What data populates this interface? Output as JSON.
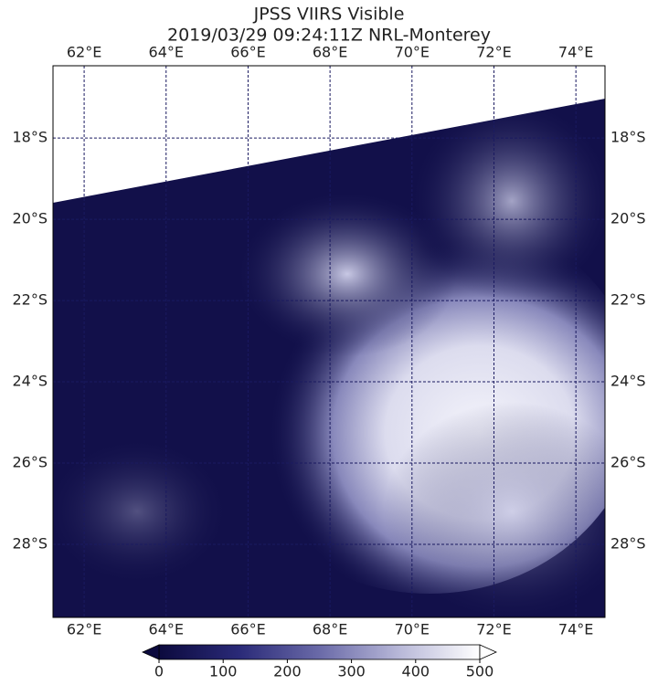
{
  "title": "JPSS VIIRS Visible",
  "subtitle": "2019/03/29 09:24:11Z NRL-Monterey",
  "map": {
    "lon_lim": [
      61.24,
      74.71
    ],
    "lat_lim": [
      -16.22,
      -29.8
    ],
    "lon_ticks": [
      {
        "value": 62,
        "label": "62°E"
      },
      {
        "value": 64,
        "label": "64°E"
      },
      {
        "value": 66,
        "label": "66°E"
      },
      {
        "value": 68,
        "label": "68°E"
      },
      {
        "value": 70,
        "label": "70°E"
      },
      {
        "value": 72,
        "label": "72°E"
      },
      {
        "value": 74,
        "label": "74°E"
      }
    ],
    "lat_ticks": [
      {
        "value": -18,
        "label": "18°S"
      },
      {
        "value": -20,
        "label": "20°S"
      },
      {
        "value": -22,
        "label": "22°S"
      },
      {
        "value": -24,
        "label": "24°S"
      },
      {
        "value": -26,
        "label": "26°S"
      },
      {
        "value": -28,
        "label": "28°S"
      }
    ]
  },
  "colorbar": {
    "lim": [
      0,
      500
    ],
    "ticks": [
      0,
      100,
      200,
      300,
      400,
      500
    ],
    "colors": [
      "#0c0a3e",
      "#2a2a78",
      "#6a6aa8",
      "#b8b8d8",
      "#ffffff"
    ]
  }
}
